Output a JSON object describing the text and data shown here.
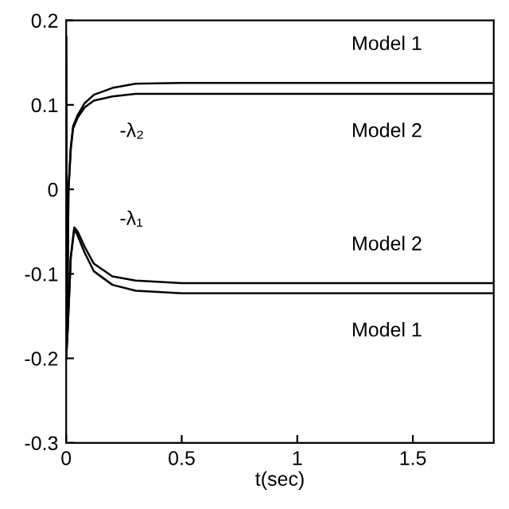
{
  "chart_data": {
    "type": "line",
    "xlabel": "t(sec)",
    "xlim": [
      0,
      1.85
    ],
    "xticks": [
      0,
      0.5,
      1,
      1.5
    ],
    "ylim": [
      -0.3,
      0.2
    ],
    "yticks": [
      -0.3,
      -0.2,
      -0.1,
      0,
      0.1,
      0.2
    ],
    "grid": false,
    "legend": false,
    "series": [
      {
        "name": "Model 1",
        "color": "#000000",
        "x": [
          0,
          0.004,
          0.01,
          0.02,
          0.03,
          0.05,
          0.08,
          0.12,
          0.2,
          0.3,
          0.5,
          1,
          1.85
        ],
        "values": [
          0.18,
          -0.18,
          0.0,
          0.05,
          0.075,
          0.088,
          0.102,
          0.112,
          0.12,
          0.125,
          0.126,
          0.126,
          0.126
        ]
      },
      {
        "name": "Model 2",
        "color": "#000000",
        "x": [
          0,
          0.004,
          0.01,
          0.02,
          0.03,
          0.05,
          0.08,
          0.12,
          0.2,
          0.3,
          0.5,
          1,
          1.85
        ],
        "values": [
          0.18,
          -0.18,
          0.0,
          0.048,
          0.072,
          0.085,
          0.097,
          0.105,
          0.11,
          0.113,
          0.113,
          0.113,
          0.113
        ]
      },
      {
        "name": "Model 2",
        "color": "#000000",
        "x": [
          0,
          0.006,
          0.02,
          0.035,
          0.05,
          0.08,
          0.12,
          0.2,
          0.3,
          0.5,
          1,
          1.85
        ],
        "values": [
          -0.2,
          -0.17,
          -0.08,
          -0.045,
          -0.05,
          -0.068,
          -0.088,
          -0.103,
          -0.108,
          -0.111,
          -0.111,
          -0.111
        ]
      },
      {
        "name": "Model 1",
        "color": "#000000",
        "x": [
          0,
          0.006,
          0.02,
          0.035,
          0.05,
          0.08,
          0.12,
          0.2,
          0.3,
          0.5,
          1,
          1.85
        ],
        "values": [
          -0.2,
          -0.17,
          -0.08,
          -0.047,
          -0.055,
          -0.075,
          -0.097,
          -0.113,
          -0.12,
          -0.123,
          -0.123,
          -0.123
        ]
      }
    ],
    "annotations": [
      "-λ₂",
      "-λ₁"
    ]
  }
}
